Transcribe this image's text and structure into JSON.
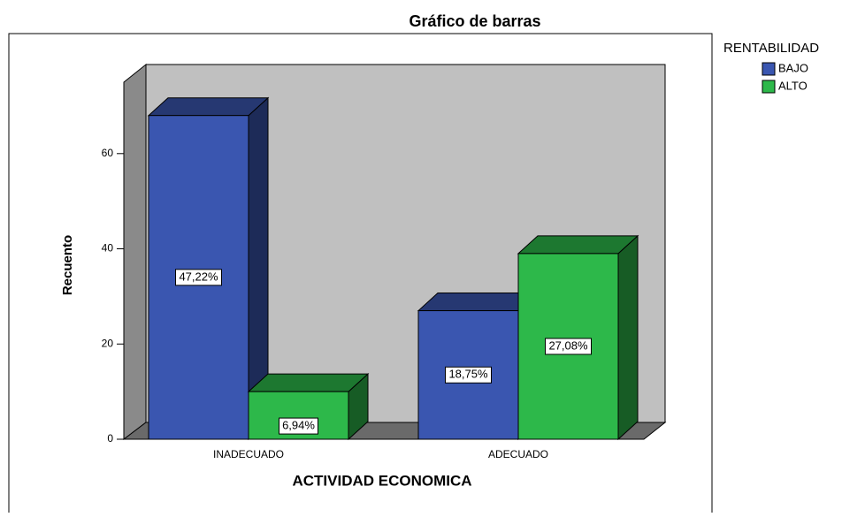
{
  "chart_data": {
    "type": "bar3d",
    "title": "Gráfico de barras",
    "x_label": "ACTIVIDAD ECONOMICA",
    "y_label": "Recuento",
    "legend_title": "RENTABILIDAD",
    "categories": [
      "INADECUADO",
      "ADECUADO"
    ],
    "series": [
      {
        "name": "BAJO",
        "color": "#3a56b0",
        "values": [
          68,
          27
        ],
        "percent_labels": [
          "47,22%",
          "18,75%"
        ]
      },
      {
        "name": "ALTO",
        "color": "#2db84a",
        "values": [
          10,
          39
        ],
        "percent_labels": [
          "6,94%",
          "27,08%"
        ]
      }
    ],
    "ylim": [
      0,
      75
    ],
    "yticks": [
      0,
      20,
      40,
      60
    ]
  }
}
